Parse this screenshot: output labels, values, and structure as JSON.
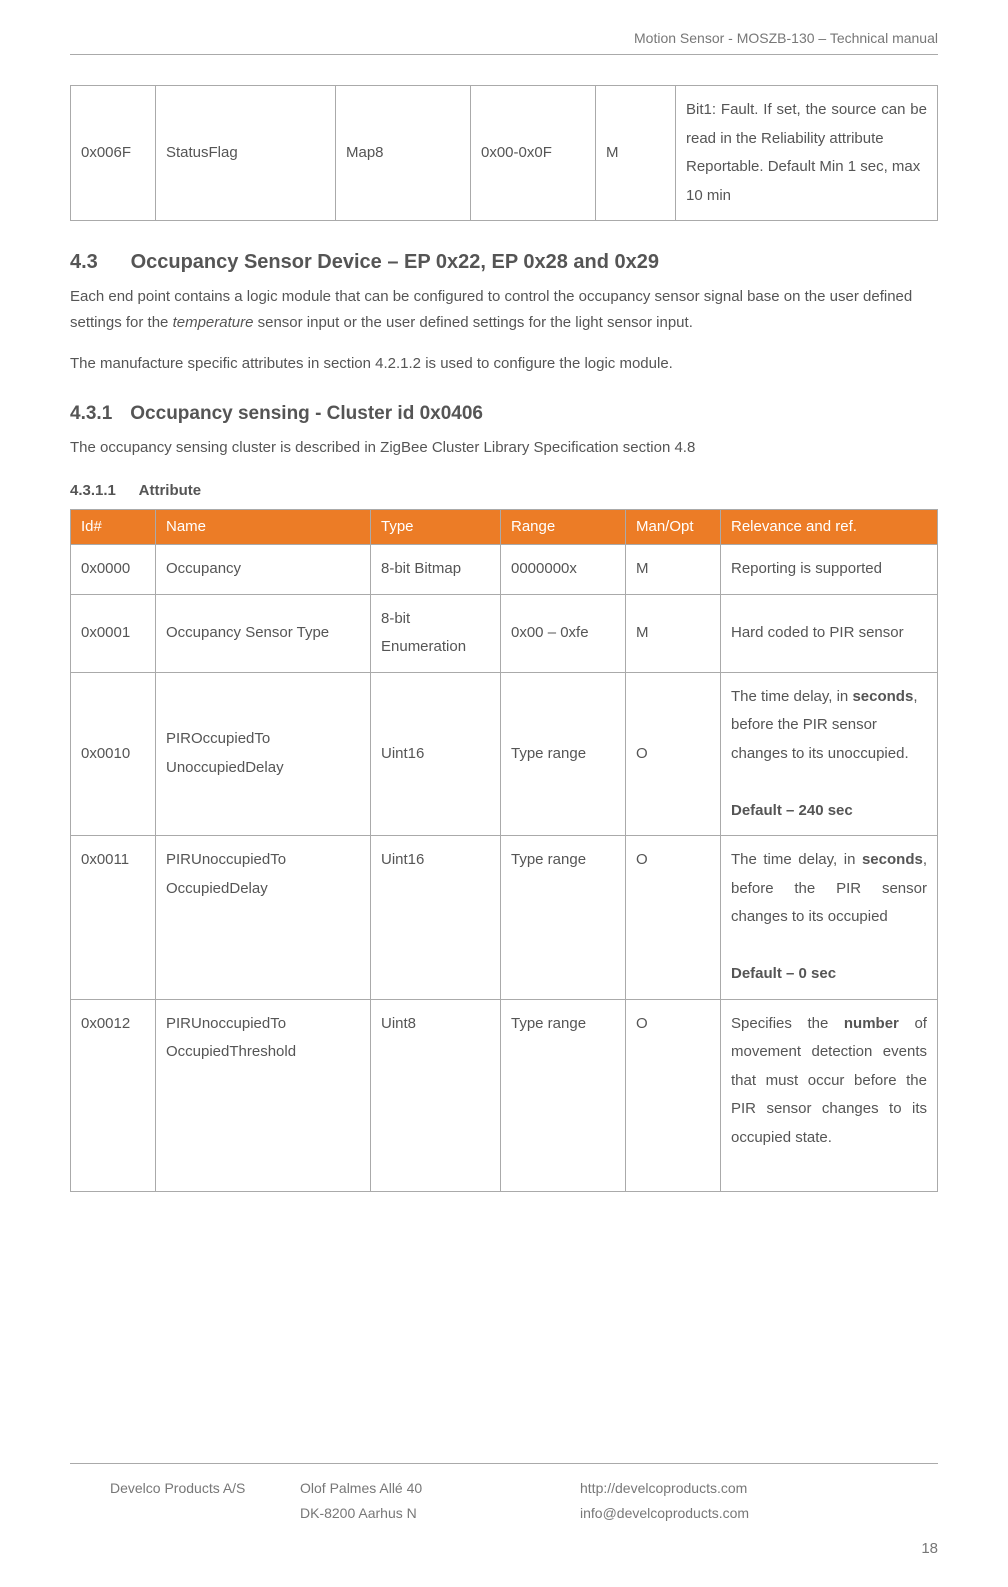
{
  "header": {
    "title": "Motion Sensor - MOSZB-130 – Technical manual"
  },
  "topTable": {
    "row": {
      "id": "0x006F",
      "name": "StatusFlag",
      "type": "Map8",
      "range": "0x00-0x0F",
      "manopt": "M",
      "relevance_line1": "Bit1: Fault. If set, the source can be read in the Reliability attribute",
      "relevance_line2": "Reportable. Default Min 1 sec, max 10 min"
    }
  },
  "section43": {
    "num": "4.3",
    "title": "Occupancy Sensor Device – EP 0x22, EP 0x28 and 0x29",
    "para1a": "Each end point contains a logic module that can be configured to control the occupancy sensor signal base on the user defined settings for the ",
    "para1_italic": "temperature",
    "para1b": " sensor input or the user defined settings for the light sensor input.",
    "para2": "The manufacture specific attributes in section 4.2.1.2 is used to configure the logic module."
  },
  "section431": {
    "num": "4.3.1",
    "title": "Occupancy sensing - Cluster id 0x0406",
    "para": "The occupancy sensing cluster is described in ZigBee Cluster Library Specification section 4.8"
  },
  "section4311": {
    "num": "4.3.1.1",
    "title": "Attribute"
  },
  "attrTable": {
    "headers": {
      "id": "Id#",
      "name": "Name",
      "type": "Type",
      "range": "Range",
      "manopt": "Man/Opt",
      "relevance": "Relevance and ref."
    },
    "r0": {
      "id": "0x0000",
      "name": "Occupancy",
      "type": "8-bit Bitmap",
      "range": "0000000x",
      "manopt": "M",
      "relevance": "Reporting is supported"
    },
    "r1": {
      "id": "0x0001",
      "name": "Occupancy Sensor Type",
      "type": "8-bit Enumeration",
      "range": "0x00 – 0xfe",
      "manopt": "M",
      "relevance": "Hard coded to PIR sensor"
    },
    "r2": {
      "id": "0x0010",
      "name": "PIROccupiedTo UnoccupiedDelay",
      "type": "Uint16",
      "range": "Type range",
      "manopt": "O",
      "rel_a": "The time delay, in ",
      "rel_bold1": "seconds",
      "rel_b": ", before the PIR sensor changes to its unoccupied.",
      "rel_default": "Default – 240 sec"
    },
    "r3": {
      "id": "0x0011",
      "name": "PIRUnoccupiedTo OccupiedDelay",
      "type": "Uint16",
      "range": "Type range",
      "manopt": "O",
      "rel_a": "The time delay, in ",
      "rel_bold1": "seconds",
      "rel_b": ", before the PIR sensor changes to its occupied",
      "rel_default": "Default – 0 sec"
    },
    "r4": {
      "id": "0x0012",
      "name": "PIRUnoccupiedTo OccupiedThreshold",
      "type": "Uint8",
      "range": "Type range",
      "manopt": "O",
      "rel_a": "Specifies the ",
      "rel_bold1": "number",
      "rel_b": " of movement detection events that must occur before the PIR sensor changes to its occupied state."
    }
  },
  "footer": {
    "company": "Develco Products A/S",
    "addr1": "Olof Palmes Allé 40",
    "addr2": "DK-8200 Aarhus N",
    "url": "http://develcoproducts.com",
    "email": "info@develcoproducts.com",
    "page": "18"
  }
}
